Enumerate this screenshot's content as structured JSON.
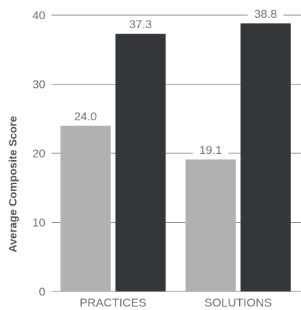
{
  "chart_data": {
    "type": "bar",
    "title": "",
    "xlabel": "",
    "ylabel": "Average Composite Score",
    "categories": [
      "PRACTICES",
      "SOLUTIONS"
    ],
    "series": [
      {
        "values": [
          24.0,
          19.1
        ],
        "color": "#b1b2b0"
      },
      {
        "values": [
          37.3,
          38.8
        ],
        "color": "#343739"
      }
    ],
    "data_labels": [
      [
        "24.0",
        "19.1"
      ],
      [
        "37.3",
        "38.8"
      ]
    ],
    "ylim": [
      0,
      40
    ],
    "yticks": [
      0,
      10,
      20,
      30,
      40
    ],
    "grid": true,
    "legend": "none",
    "colors": {
      "gridline": "#7a7a7a",
      "text": "#6f6f6f"
    }
  }
}
